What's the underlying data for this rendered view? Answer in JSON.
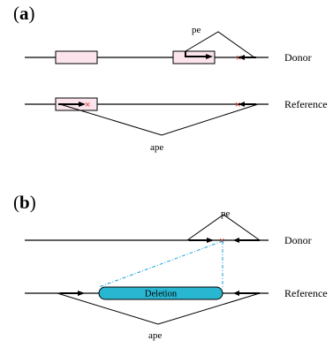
{
  "panel_a": {
    "label_open": "(",
    "label_letter": "a",
    "label_close": ")",
    "donor_label": "Donor",
    "reference_label": "Reference",
    "pe_label": "pe",
    "ape_label": "ape"
  },
  "panel_b": {
    "label_open": "(",
    "label_letter": "b",
    "label_close": ")",
    "donor_label": "Donor",
    "reference_label": "Reference",
    "pe_label": "pe",
    "ape_label": "ape",
    "deletion_label": "Deletion"
  },
  "colors": {
    "insertion_box_fill": "#fce4ec",
    "deletion_fill": "#29b6d0",
    "breakpoint_x": "#e53935",
    "connector_dash": "#1aa3d9",
    "line": "#000000"
  }
}
